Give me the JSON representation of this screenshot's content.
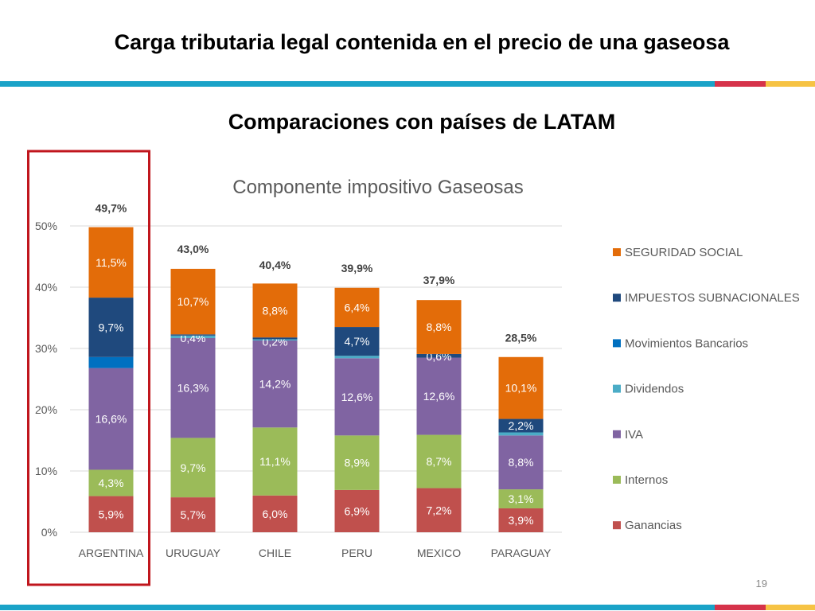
{
  "slide": {
    "title": "Carga tributaria legal contenida en el precio de una gaseosa",
    "subtitle": "Comparaciones con países de LATAM",
    "page_number": "19"
  },
  "colors": {
    "band_blue": "#1aa3c8",
    "band_red": "#d6334a",
    "band_yellow": "#f6c344",
    "highlight_box": "#c0161d",
    "gridline": "#d9d9d9",
    "axis_text": "#595959"
  },
  "chart_data": {
    "type": "bar",
    "stacked": true,
    "title": "Componente impositivo Gaseosas",
    "categories": [
      "ARGENTINA",
      "URUGUAY",
      "CHILE",
      "PERU",
      "MEXICO",
      "PARAGUAY"
    ],
    "ylim": [
      0,
      50
    ],
    "yticks": [
      0,
      10,
      20,
      30,
      40,
      50
    ],
    "ytick_labels": [
      "0%",
      "10%",
      "20%",
      "30%",
      "40%",
      "50%"
    ],
    "grid": true,
    "legend_position": "right",
    "totals": [
      49.7,
      43.0,
      40.4,
      39.9,
      37.9,
      28.5
    ],
    "total_labels": [
      "49,7%",
      "43,0%",
      "40,4%",
      "39,9%",
      "37,9%",
      "28,5%"
    ],
    "highlighted_category": "ARGENTINA",
    "series": [
      {
        "name": "Ganancias",
        "color": "#c0504d",
        "values": [
          5.9,
          5.7,
          6.0,
          6.9,
          7.2,
          3.9
        ],
        "labels": [
          "5,9%",
          "5,7%",
          "6,0%",
          "6,9%",
          "7,2%",
          "3,9%"
        ]
      },
      {
        "name": "Internos",
        "color": "#9bbb59",
        "values": [
          4.3,
          9.7,
          11.1,
          8.9,
          8.7,
          3.1
        ],
        "labels": [
          "4,3%",
          "9,7%",
          "11,1%",
          "8,9%",
          "8,7%",
          "3,1%"
        ]
      },
      {
        "name": "IVA",
        "color": "#8064a2",
        "values": [
          16.6,
          16.3,
          14.2,
          12.6,
          12.6,
          8.8
        ],
        "labels": [
          "16,6%",
          "16,3%",
          "14,2%",
          "12,6%",
          "12,6%",
          "8,8%"
        ]
      },
      {
        "name": "Dividendos",
        "color": "#4bacc6",
        "values": [
          0,
          0.4,
          0.2,
          0.4,
          0,
          0.5
        ],
        "labels": [
          "",
          "0,4%",
          "0,2%",
          "",
          "",
          ""
        ]
      },
      {
        "name": "Movimientos Bancarios",
        "color": "#0070c0",
        "values": [
          1.8,
          0,
          0,
          0,
          0,
          0
        ],
        "labels": [
          "",
          "",
          "",
          "",
          "",
          ""
        ]
      },
      {
        "name": "IMPUESTOS SUBNACIONALES",
        "color": "#1f497d",
        "values": [
          9.7,
          0.2,
          0.3,
          4.7,
          0.6,
          2.2
        ],
        "labels": [
          "9,7%",
          "",
          "",
          "4,7%",
          "0,6%",
          "2,2%"
        ]
      },
      {
        "name": "SEGURIDAD SOCIAL",
        "color": "#e36c09",
        "values": [
          11.5,
          10.7,
          8.8,
          6.4,
          8.8,
          10.1
        ],
        "labels": [
          "11,5%",
          "10,7%",
          "8,8%",
          "6,4%",
          "8,8%",
          "10,1%"
        ]
      }
    ]
  }
}
